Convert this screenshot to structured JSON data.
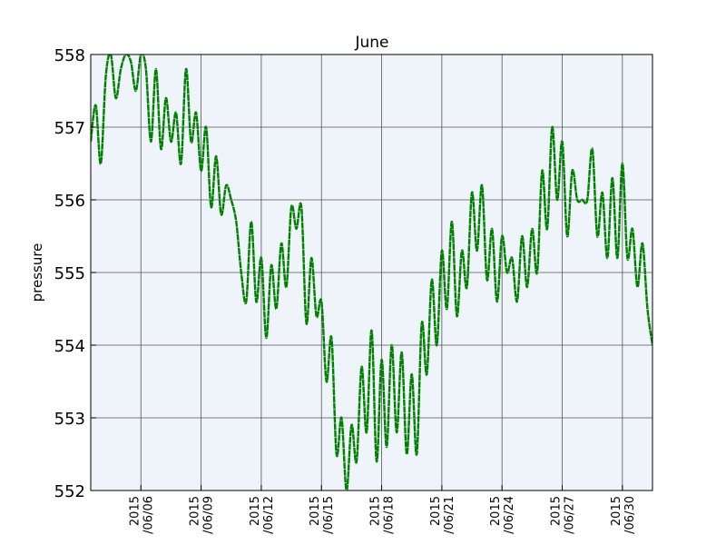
{
  "chart_data": {
    "type": "line",
    "title": "June",
    "xlabel": "",
    "ylabel": "pressure",
    "xlim": [
      "2015-06-03T12:00",
      "2015-07-01T12:00"
    ],
    "ylim": [
      552,
      558
    ],
    "grid": true,
    "yticks": [
      {
        "value": 552,
        "label": "552"
      },
      {
        "value": 553,
        "label": "553"
      },
      {
        "value": 554,
        "label": "554"
      },
      {
        "value": 555,
        "label": "555"
      },
      {
        "value": 556,
        "label": "556"
      },
      {
        "value": 557,
        "label": "557"
      },
      {
        "value": 558,
        "label": "558"
      }
    ],
    "xticks": [
      {
        "value": "2015-06-06",
        "line1": "2015",
        "line2": "/06/06"
      },
      {
        "value": "2015-06-09",
        "line1": "2015",
        "line2": "/06/09"
      },
      {
        "value": "2015-06-12",
        "line1": "2015",
        "line2": "/06/12"
      },
      {
        "value": "2015-06-15",
        "line1": "2015",
        "line2": "/06/15"
      },
      {
        "value": "2015-06-18",
        "line1": "2015",
        "line2": "/06/18"
      },
      {
        "value": "2015-06-21",
        "line1": "2015",
        "line2": "/06/21"
      },
      {
        "value": "2015-06-24",
        "line1": "2015",
        "line2": "/06/24"
      },
      {
        "value": "2015-06-27",
        "line1": "2015",
        "line2": "/06/27"
      },
      {
        "value": "2015-06-30",
        "line1": "2015",
        "line2": "/06/30"
      }
    ],
    "series": [
      {
        "color": "#008000",
        "points": [
          [
            "2015-06-03T12:00",
            556.8
          ],
          [
            "2015-06-03T18:00",
            557.3
          ],
          [
            "2015-06-04T00:00",
            556.5
          ],
          [
            "2015-06-04T06:00",
            557.7
          ],
          [
            "2015-06-04T12:00",
            558.0
          ],
          [
            "2015-06-04T18:00",
            557.4
          ],
          [
            "2015-06-05T00:00",
            557.8
          ],
          [
            "2015-06-05T06:00",
            558.0
          ],
          [
            "2015-06-05T12:00",
            557.9
          ],
          [
            "2015-06-05T18:00",
            557.5
          ],
          [
            "2015-06-06T00:00",
            558.0
          ],
          [
            "2015-06-06T06:00",
            557.8
          ],
          [
            "2015-06-06T12:00",
            556.8
          ],
          [
            "2015-06-06T18:00",
            557.8
          ],
          [
            "2015-06-07T00:00",
            556.7
          ],
          [
            "2015-06-07T06:00",
            557.4
          ],
          [
            "2015-06-07T12:00",
            556.8
          ],
          [
            "2015-06-07T18:00",
            557.2
          ],
          [
            "2015-06-08T00:00",
            556.5
          ],
          [
            "2015-06-08T06:00",
            557.8
          ],
          [
            "2015-06-08T12:00",
            556.8
          ],
          [
            "2015-06-08T18:00",
            557.2
          ],
          [
            "2015-06-09T00:00",
            556.4
          ],
          [
            "2015-06-09T06:00",
            557.0
          ],
          [
            "2015-06-09T12:00",
            555.9
          ],
          [
            "2015-06-09T18:00",
            556.6
          ],
          [
            "2015-06-10T00:00",
            555.8
          ],
          [
            "2015-06-10T06:00",
            556.2
          ],
          [
            "2015-06-10T12:00",
            556.0
          ],
          [
            "2015-06-10T18:00",
            555.7
          ],
          [
            "2015-06-11T00:00",
            555.0
          ],
          [
            "2015-06-11T06:00",
            554.6
          ],
          [
            "2015-06-11T12:00",
            555.7
          ],
          [
            "2015-06-11T18:00",
            554.6
          ],
          [
            "2015-06-12T00:00",
            555.2
          ],
          [
            "2015-06-12T06:00",
            554.1
          ],
          [
            "2015-06-12T12:00",
            555.1
          ],
          [
            "2015-06-12T18:00",
            554.5
          ],
          [
            "2015-06-13T00:00",
            555.4
          ],
          [
            "2015-06-13T06:00",
            554.8
          ],
          [
            "2015-06-13T12:00",
            555.9
          ],
          [
            "2015-06-13T18:00",
            555.6
          ],
          [
            "2015-06-14T00:00",
            555.9
          ],
          [
            "2015-06-14T06:00",
            554.3
          ],
          [
            "2015-06-14T12:00",
            555.2
          ],
          [
            "2015-06-14T18:00",
            554.4
          ],
          [
            "2015-06-15T00:00",
            554.6
          ],
          [
            "2015-06-15T06:00",
            553.5
          ],
          [
            "2015-06-15T12:00",
            554.1
          ],
          [
            "2015-06-15T18:00",
            552.5
          ],
          [
            "2015-06-16T00:00",
            553.0
          ],
          [
            "2015-06-16T06:00",
            552.0
          ],
          [
            "2015-06-16T12:00",
            552.9
          ],
          [
            "2015-06-16T18:00",
            552.4
          ],
          [
            "2015-06-17T00:00",
            553.7
          ],
          [
            "2015-06-17T06:00",
            552.8
          ],
          [
            "2015-06-17T12:00",
            554.2
          ],
          [
            "2015-06-17T18:00",
            552.4
          ],
          [
            "2015-06-18T00:00",
            553.8
          ],
          [
            "2015-06-18T06:00",
            552.6
          ],
          [
            "2015-06-18T12:00",
            554.0
          ],
          [
            "2015-06-18T18:00",
            552.8
          ],
          [
            "2015-06-19T00:00",
            553.9
          ],
          [
            "2015-06-19T06:00",
            552.5
          ],
          [
            "2015-06-19T12:00",
            553.6
          ],
          [
            "2015-06-19T18:00",
            552.5
          ],
          [
            "2015-06-20T00:00",
            554.3
          ],
          [
            "2015-06-20T06:00",
            553.6
          ],
          [
            "2015-06-20T12:00",
            554.9
          ],
          [
            "2015-06-20T18:00",
            554.0
          ],
          [
            "2015-06-21T00:00",
            555.3
          ],
          [
            "2015-06-21T06:00",
            554.5
          ],
          [
            "2015-06-21T12:00",
            555.7
          ],
          [
            "2015-06-21T18:00",
            554.4
          ],
          [
            "2015-06-22T00:00",
            555.3
          ],
          [
            "2015-06-22T06:00",
            554.8
          ],
          [
            "2015-06-22T12:00",
            556.1
          ],
          [
            "2015-06-22T18:00",
            555.3
          ],
          [
            "2015-06-23T00:00",
            556.2
          ],
          [
            "2015-06-23T06:00",
            554.9
          ],
          [
            "2015-06-23T12:00",
            555.6
          ],
          [
            "2015-06-23T18:00",
            554.6
          ],
          [
            "2015-06-24T00:00",
            555.5
          ],
          [
            "2015-06-24T06:00",
            555.0
          ],
          [
            "2015-06-24T12:00",
            555.2
          ],
          [
            "2015-06-24T18:00",
            554.6
          ],
          [
            "2015-06-25T00:00",
            555.5
          ],
          [
            "2015-06-25T06:00",
            554.8
          ],
          [
            "2015-06-25T12:00",
            555.6
          ],
          [
            "2015-06-25T18:00",
            555.0
          ],
          [
            "2015-06-26T00:00",
            556.4
          ],
          [
            "2015-06-26T06:00",
            555.6
          ],
          [
            "2015-06-26T12:00",
            557.0
          ],
          [
            "2015-06-26T18:00",
            556.0
          ],
          [
            "2015-06-27T00:00",
            556.8
          ],
          [
            "2015-06-27T06:00",
            555.5
          ],
          [
            "2015-06-27T12:00",
            556.4
          ],
          [
            "2015-06-27T18:00",
            556.0
          ],
          [
            "2015-06-28T00:00",
            556.0
          ],
          [
            "2015-06-28T06:00",
            556.0
          ],
          [
            "2015-06-28T12:00",
            556.7
          ],
          [
            "2015-06-28T18:00",
            555.5
          ],
          [
            "2015-06-29T00:00",
            556.1
          ],
          [
            "2015-06-29T06:00",
            555.2
          ],
          [
            "2015-06-29T12:00",
            556.3
          ],
          [
            "2015-06-29T18:00",
            555.2
          ],
          [
            "2015-06-30T00:00",
            556.5
          ],
          [
            "2015-06-30T06:00",
            555.2
          ],
          [
            "2015-06-30T12:00",
            555.6
          ],
          [
            "2015-06-30T18:00",
            554.8
          ],
          [
            "2015-07-01T00:00",
            555.4
          ],
          [
            "2015-07-01T06:00",
            554.5
          ],
          [
            "2015-07-01T12:00",
            554.0
          ]
        ]
      }
    ]
  }
}
